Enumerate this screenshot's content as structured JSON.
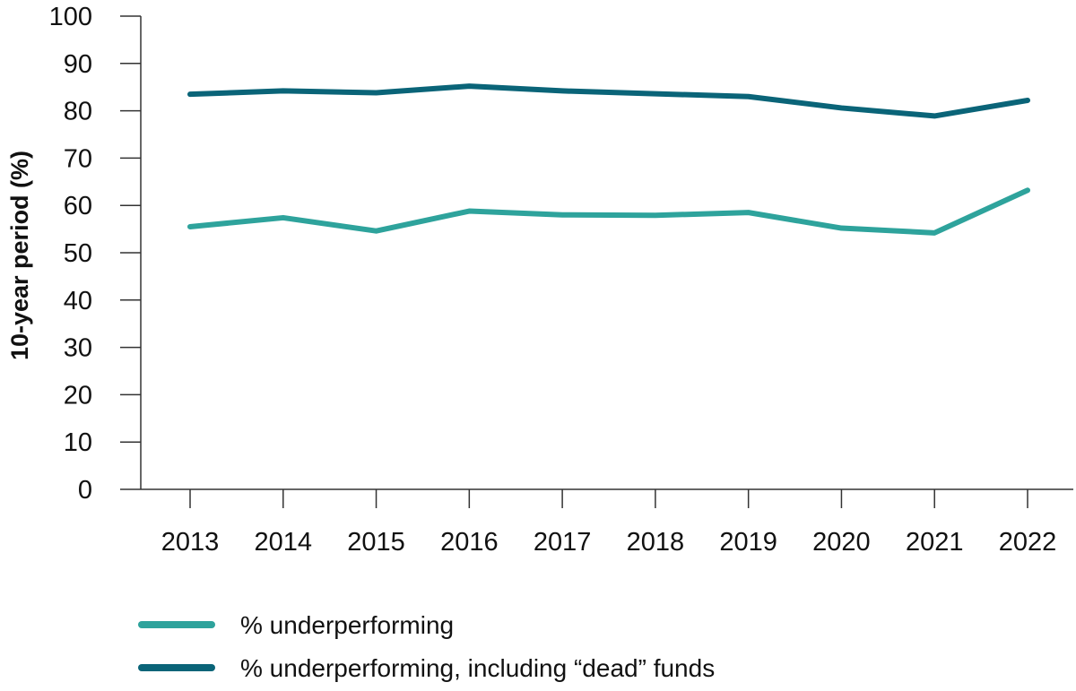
{
  "chart_data": {
    "type": "line",
    "ylabel": "10-year period (%)",
    "xlabel": "",
    "ylim": [
      0,
      100
    ],
    "yticks": [
      0,
      10,
      20,
      30,
      40,
      50,
      60,
      70,
      80,
      90,
      100
    ],
    "x": [
      "2013",
      "2014",
      "2015",
      "2016",
      "2017",
      "2018",
      "2019",
      "2020",
      "2021",
      "2022"
    ],
    "grid": false,
    "legend_position": "bottom-left",
    "series": [
      {
        "name": "% underperforming",
        "color": "#2ea39c",
        "values": [
          55.5,
          57.4,
          54.6,
          58.8,
          58.0,
          57.9,
          58.5,
          55.2,
          54.2,
          63.2
        ]
      },
      {
        "name": "% underperforming, including “dead” funds",
        "color": "#0a6478",
        "values": [
          83.5,
          84.2,
          83.8,
          85.2,
          84.2,
          83.6,
          83.0,
          80.6,
          78.9,
          82.2
        ]
      }
    ]
  }
}
